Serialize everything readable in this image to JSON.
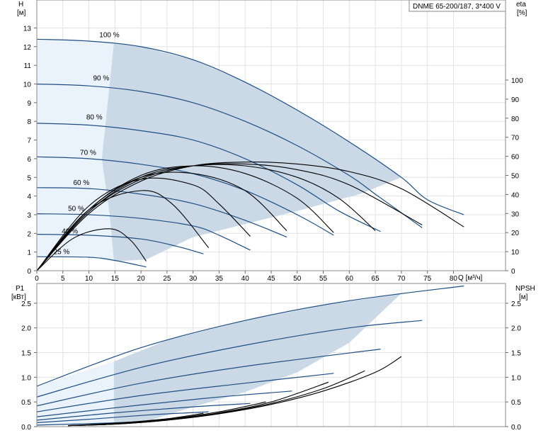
{
  "chart_data": [
    {
      "type": "line",
      "model_label": "DNME 65-200/187, 3*400 V",
      "y_axis": {
        "name": "H",
        "unit": "[м]",
        "ticks": [
          0,
          1,
          2,
          3,
          4,
          5,
          6,
          7,
          8,
          9,
          10,
          11,
          12,
          13
        ],
        "ylim": [
          0,
          14.5
        ]
      },
      "y2_axis": {
        "name": "eta",
        "unit": "[%]",
        "ticks": [
          0,
          10,
          20,
          30,
          40,
          50,
          60,
          70,
          80,
          90,
          100
        ],
        "ylim": [
          0,
          142
        ]
      },
      "x_axis": {
        "name": "Q",
        "unit": "[м³/ч]",
        "ticks": [
          0,
          5,
          10,
          15,
          20,
          25,
          30,
          35,
          40,
          45,
          50,
          55,
          60,
          65,
          70,
          75,
          80
        ],
        "xlim": [
          0,
          90
        ]
      },
      "grid": true,
      "speed_labels": [
        "100 %",
        "90 %",
        "80 %",
        "70 %",
        "60 %",
        "50 %",
        "40 %",
        "25 %"
      ],
      "head_curves": [
        {
          "speed": 1.0,
          "label_at": [
            12.0,
            12.5
          ],
          "x": [
            0,
            10,
            20,
            30,
            40,
            50,
            60,
            70,
            75,
            82
          ],
          "y": [
            12.4,
            12.3,
            12.0,
            11.3,
            10.1,
            8.6,
            6.9,
            5.0,
            3.8,
            3.0
          ]
        },
        {
          "speed": 0.9,
          "label_at": [
            10.8,
            10.2
          ],
          "x": [
            0,
            10,
            20,
            30,
            40,
            50,
            60,
            65,
            70,
            74
          ],
          "y": [
            10.0,
            9.9,
            9.6,
            9.0,
            8.0,
            6.7,
            5.1,
            4.1,
            3.1,
            2.3
          ]
        },
        {
          "speed": 0.8,
          "label_at": [
            9.5,
            8.1
          ],
          "x": [
            0,
            10,
            20,
            30,
            40,
            50,
            58,
            66
          ],
          "y": [
            7.9,
            7.8,
            7.5,
            7.0,
            6.0,
            4.6,
            3.2,
            2.1
          ]
        },
        {
          "speed": 0.7,
          "label_at": [
            8.3,
            6.2
          ],
          "x": [
            0,
            10,
            20,
            30,
            40,
            50,
            57
          ],
          "y": [
            6.1,
            6.0,
            5.7,
            5.2,
            4.3,
            3.0,
            1.9
          ]
        },
        {
          "speed": 0.6,
          "label_at": [
            7.0,
            4.6
          ],
          "x": [
            0,
            10,
            20,
            30,
            40,
            48
          ],
          "y": [
            4.45,
            4.4,
            4.1,
            3.6,
            2.7,
            1.8
          ]
        },
        {
          "speed": 0.5,
          "label_at": [
            6.0,
            3.2
          ],
          "x": [
            0,
            10,
            20,
            30,
            35,
            41
          ],
          "y": [
            3.05,
            3.0,
            2.8,
            2.4,
            1.9,
            1.1
          ]
        },
        {
          "speed": 0.4,
          "label_at": [
            4.8,
            2.0
          ],
          "x": [
            0,
            10,
            20,
            27,
            32
          ],
          "y": [
            1.95,
            1.9,
            1.7,
            1.3,
            0.9
          ]
        },
        {
          "speed": 0.25,
          "label_at": [
            3.2,
            0.9
          ],
          "x": [
            0,
            10,
            15,
            21
          ],
          "y": [
            0.75,
            0.72,
            0.55,
            0.2
          ]
        }
      ],
      "eta_curves": [
        {
          "x": [
            0,
            10,
            20,
            30,
            40,
            50,
            60,
            70,
            82
          ],
          "y": [
            0,
            30,
            47,
            55,
            57,
            56,
            52,
            43,
            23
          ]
        },
        {
          "x": [
            0,
            10,
            20,
            30,
            40,
            50,
            60,
            74
          ],
          "y": [
            0,
            31,
            48,
            55,
            56,
            53,
            45,
            24
          ]
        },
        {
          "x": [
            0,
            10,
            20,
            30,
            40,
            50,
            58,
            65
          ],
          "y": [
            0,
            31,
            49,
            55,
            55,
            49,
            38,
            21
          ]
        },
        {
          "x": [
            0,
            10,
            20,
            30,
            40,
            50,
            57
          ],
          "y": [
            0,
            32,
            50,
            55,
            51,
            38,
            20
          ]
        },
        {
          "x": [
            0,
            10,
            20,
            30,
            40,
            48
          ],
          "y": [
            0,
            32,
            49,
            51,
            42,
            21
          ]
        },
        {
          "x": [
            0,
            10,
            20,
            30,
            35,
            41
          ],
          "y": [
            0,
            34,
            48,
            45,
            35,
            18
          ]
        },
        {
          "x": [
            0,
            10,
            20,
            26,
            33
          ],
          "y": [
            0,
            32,
            42,
            35,
            12
          ]
        },
        {
          "x": [
            0,
            7,
            14,
            18,
            21
          ],
          "y": [
            0,
            17,
            22,
            16,
            5
          ]
        }
      ]
    },
    {
      "type": "line",
      "y_axis": {
        "name": "P1",
        "unit": "[кВт]",
        "ticks": [
          "0.0",
          "0.5",
          "1.0",
          "1.5",
          "2.0",
          "2.5"
        ],
        "ylim": [
          0,
          2.9
        ]
      },
      "y2_axis": {
        "name": "NPSH",
        "unit": "[м]",
        "ticks": [
          "0.0",
          "0.5",
          "1.0",
          "1.5",
          "2.0",
          "2.5"
        ],
        "ylim": [
          0,
          2.9
        ]
      },
      "grid": true,
      "power_curves": [
        {
          "x": [
            0,
            20,
            40,
            60,
            82
          ],
          "y": [
            0.82,
            1.6,
            2.15,
            2.55,
            2.85
          ]
        },
        {
          "x": [
            0,
            20,
            40,
            60,
            74
          ],
          "y": [
            0.6,
            1.2,
            1.65,
            2.0,
            2.15
          ]
        },
        {
          "x": [
            0,
            20,
            40,
            66
          ],
          "y": [
            0.42,
            0.88,
            1.22,
            1.57
          ]
        },
        {
          "x": [
            0,
            20,
            40,
            57
          ],
          "y": [
            0.3,
            0.63,
            0.88,
            1.08
          ]
        },
        {
          "x": [
            0,
            20,
            35,
            49
          ],
          "y": [
            0.2,
            0.44,
            0.6,
            0.72
          ]
        },
        {
          "x": [
            0,
            15,
            30,
            41
          ],
          "y": [
            0.13,
            0.28,
            0.4,
            0.47
          ]
        },
        {
          "x": [
            0,
            10,
            22,
            33
          ],
          "y": [
            0.08,
            0.15,
            0.24,
            0.3
          ]
        },
        {
          "x": [
            0,
            10,
            21
          ],
          "y": [
            0.03,
            0.06,
            0.1
          ]
        }
      ],
      "npsh_curves": [
        {
          "x": [
            6,
            15,
            25,
            35,
            45,
            55,
            65,
            70
          ],
          "y": [
            0.02,
            0.05,
            0.13,
            0.26,
            0.45,
            0.72,
            1.1,
            1.42
          ]
        },
        {
          "x": [
            6,
            15,
            25,
            35,
            45,
            55,
            63
          ],
          "y": [
            0.02,
            0.05,
            0.13,
            0.27,
            0.47,
            0.77,
            1.13
          ]
        },
        {
          "x": [
            6,
            15,
            25,
            35,
            45,
            56
          ],
          "y": [
            0.02,
            0.05,
            0.14,
            0.28,
            0.5,
            0.9
          ]
        },
        {
          "x": [
            6,
            15,
            25,
            35,
            44
          ],
          "y": [
            0.02,
            0.06,
            0.15,
            0.3,
            0.5
          ]
        },
        {
          "x": [
            6,
            15,
            25,
            32
          ],
          "y": [
            0.02,
            0.07,
            0.16,
            0.27
          ]
        }
      ]
    }
  ]
}
